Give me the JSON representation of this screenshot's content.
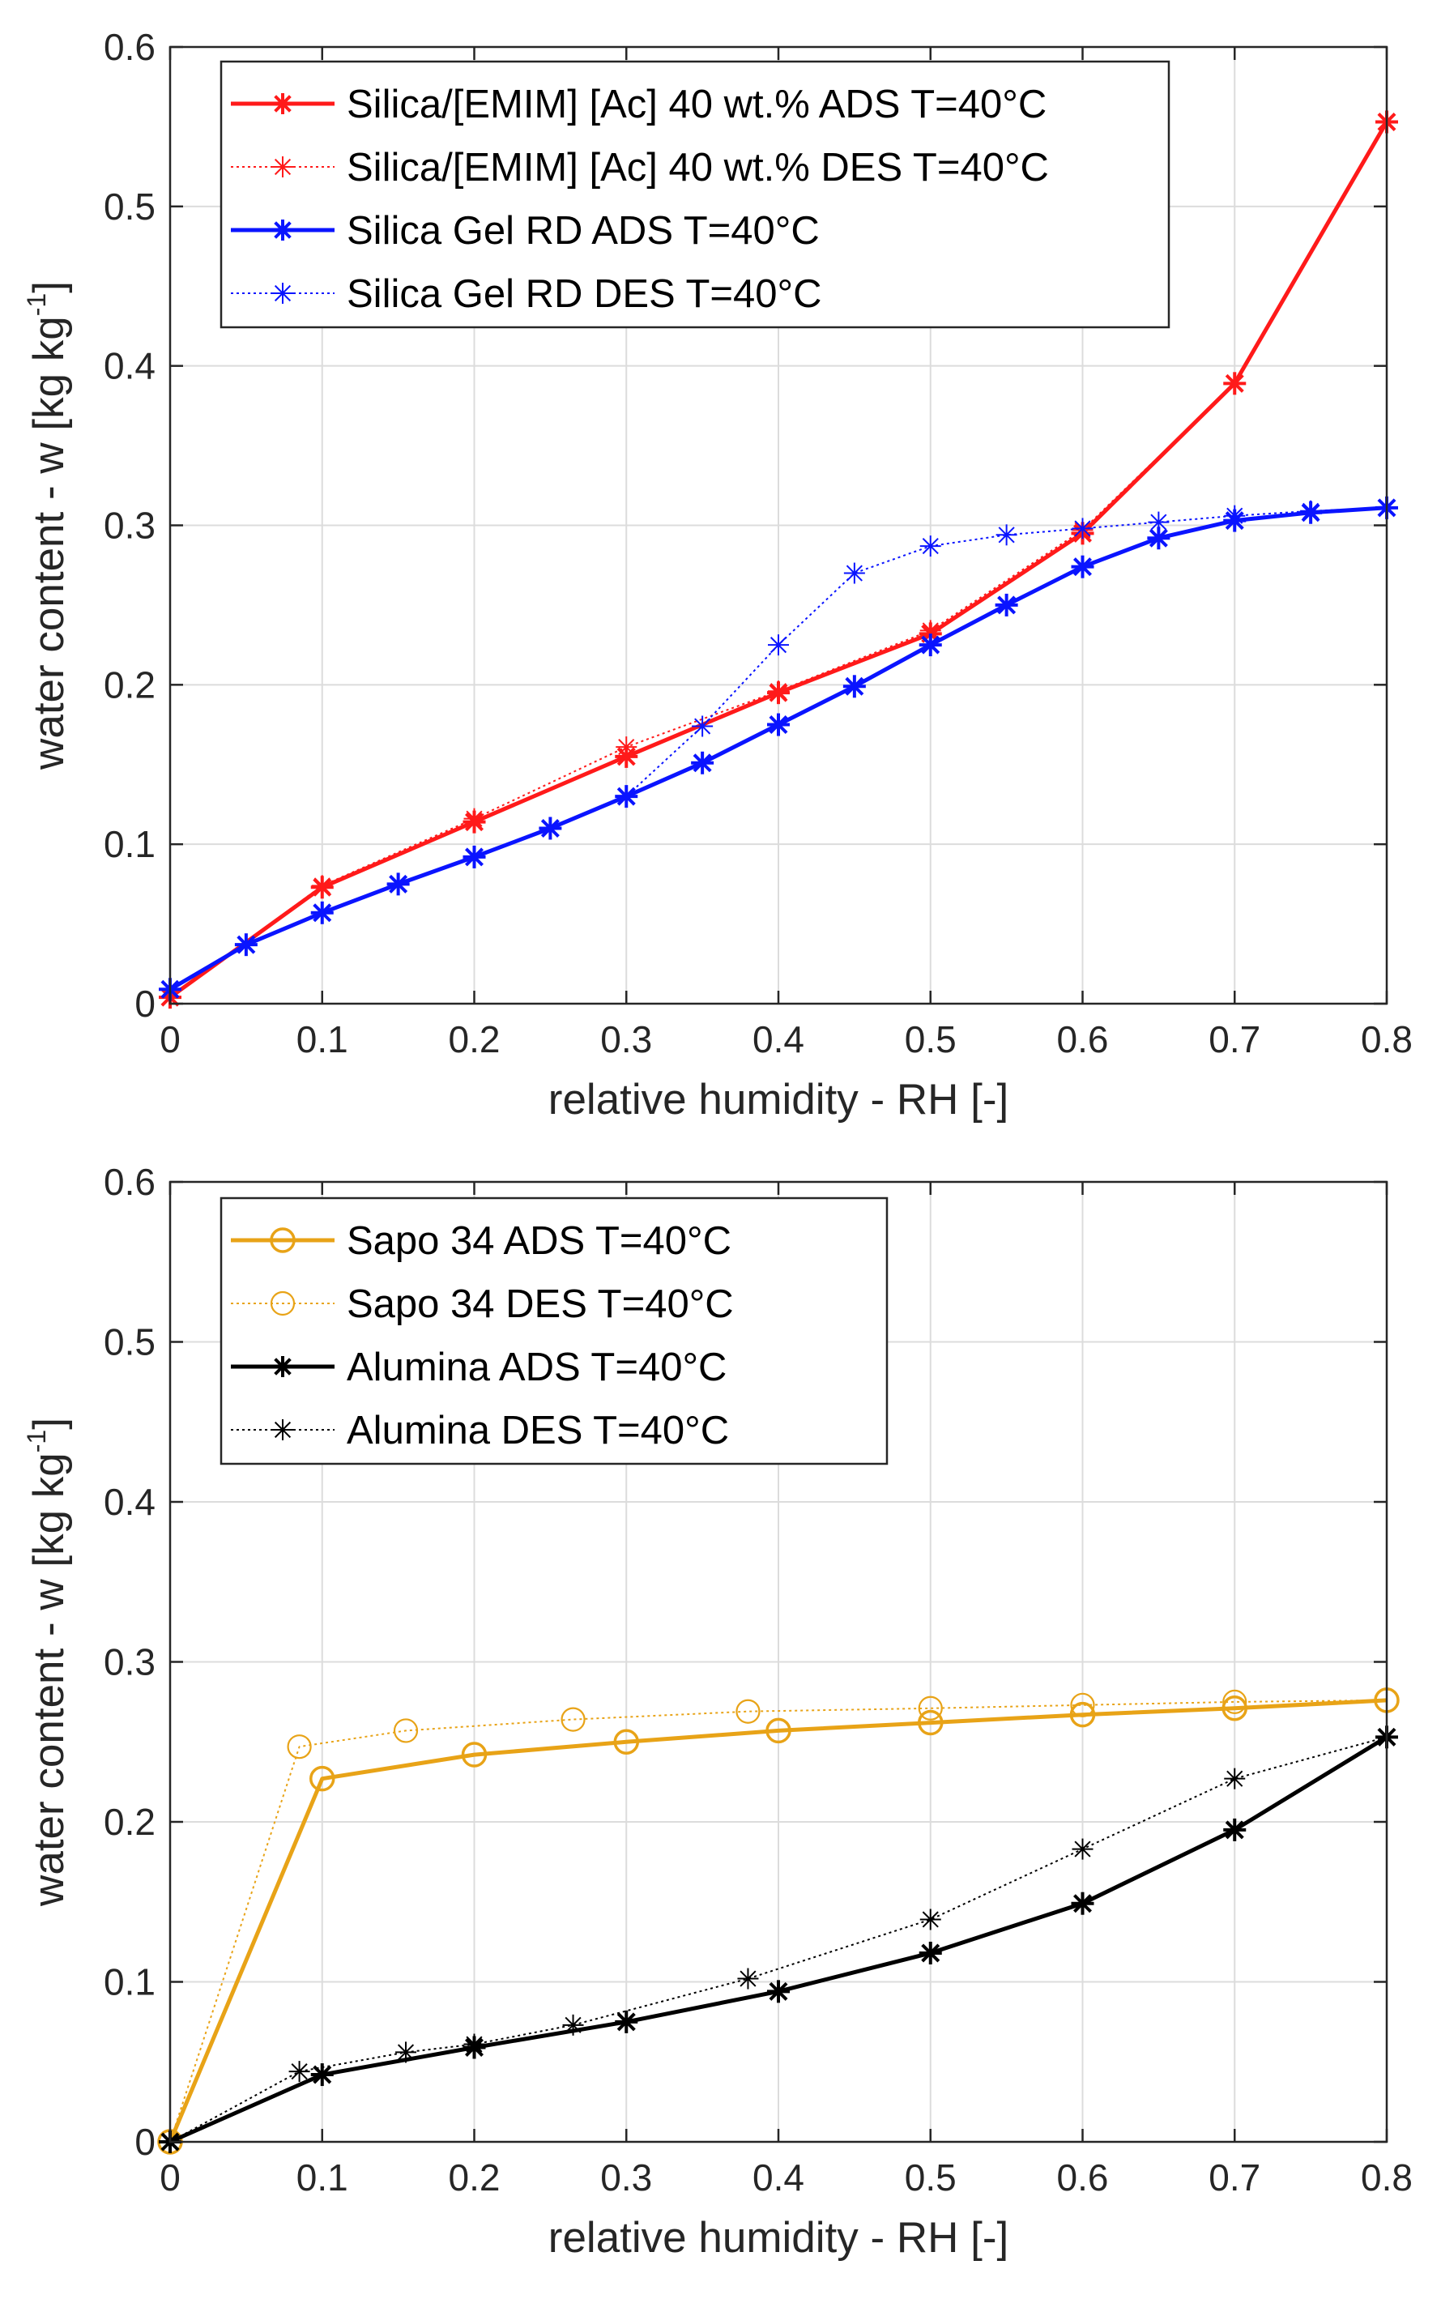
{
  "chart_data": [
    {
      "type": "line",
      "xlabel": "relative humidity - RH [-]",
      "ylabel": "water content - w [kg kg",
      "ylabel_sup": "-1",
      "ylabel_close": "]",
      "xlim": [
        0,
        0.8
      ],
      "ylim": [
        0,
        0.6
      ],
      "xticks": [
        0,
        0.1,
        0.2,
        0.3,
        0.4,
        0.5,
        0.6,
        0.7,
        0.8
      ],
      "xtick_labels": [
        "0",
        "0.1",
        "0.2",
        "0.3",
        "0.4",
        "0.5",
        "0.6",
        "0.7",
        "0.8"
      ],
      "yticks": [
        0,
        0.1,
        0.2,
        0.3,
        0.4,
        0.5,
        0.6
      ],
      "ytick_labels": [
        "0",
        "0.1",
        "0.2",
        "0.3",
        "0.4",
        "0.5",
        "0.6"
      ],
      "grid": true,
      "legend_position": "top-left",
      "series": [
        {
          "name": "Silica/[EMIM] [Ac] 40 wt.%  ADS T=40°C",
          "color": "#ff1a1a",
          "style": "solid",
          "marker": "asterisk",
          "points": [
            [
              0.0,
              0.004
            ],
            [
              0.1,
              0.073
            ],
            [
              0.2,
              0.114
            ],
            [
              0.3,
              0.155
            ],
            [
              0.4,
              0.195
            ],
            [
              0.5,
              0.232
            ],
            [
              0.6,
              0.295
            ],
            [
              0.7,
              0.389
            ],
            [
              0.8,
              0.553
            ]
          ]
        },
        {
          "name": "Silica/[EMIM] [Ac] 40 wt.%  DES T=40°C",
          "color": "#ff1a1a",
          "style": "dotted",
          "marker": "asterisk",
          "points": [
            [
              0.0,
              0.004
            ],
            [
              0.1,
              0.074
            ],
            [
              0.2,
              0.116
            ],
            [
              0.3,
              0.161
            ],
            [
              0.4,
              0.196
            ],
            [
              0.5,
              0.234
            ],
            [
              0.6,
              0.297
            ],
            [
              0.7,
              0.389
            ],
            [
              0.8,
              0.553
            ]
          ]
        },
        {
          "name": "Silica Gel RD ADS T=40°C",
          "color": "#0a14ff",
          "style": "solid",
          "marker": "asterisk",
          "points": [
            [
              0.0,
              0.009
            ],
            [
              0.05,
              0.037
            ],
            [
              0.1,
              0.057
            ],
            [
              0.15,
              0.075
            ],
            [
              0.2,
              0.092
            ],
            [
              0.25,
              0.11
            ],
            [
              0.3,
              0.13
            ],
            [
              0.35,
              0.151
            ],
            [
              0.4,
              0.175
            ],
            [
              0.45,
              0.199
            ],
            [
              0.5,
              0.225
            ],
            [
              0.55,
              0.25
            ],
            [
              0.6,
              0.274
            ],
            [
              0.65,
              0.292
            ],
            [
              0.7,
              0.303
            ],
            [
              0.75,
              0.308
            ],
            [
              0.8,
              0.311
            ]
          ]
        },
        {
          "name": "Silica Gel RD DES T=40°C",
          "color": "#0a14ff",
          "style": "dotted",
          "marker": "asterisk",
          "points": [
            [
              0.0,
              0.009
            ],
            [
              0.05,
              0.037
            ],
            [
              0.1,
              0.057
            ],
            [
              0.15,
              0.075
            ],
            [
              0.2,
              0.092
            ],
            [
              0.25,
              0.11
            ],
            [
              0.3,
              0.13
            ],
            [
              0.35,
              0.174
            ],
            [
              0.4,
              0.225
            ],
            [
              0.45,
              0.27
            ],
            [
              0.5,
              0.287
            ],
            [
              0.55,
              0.294
            ],
            [
              0.6,
              0.298
            ],
            [
              0.65,
              0.302
            ],
            [
              0.7,
              0.306
            ],
            [
              0.75,
              0.309
            ],
            [
              0.8,
              0.311
            ]
          ]
        }
      ]
    },
    {
      "type": "line",
      "xlabel": "relative humidity - RH [-]",
      "ylabel": "water content - w [kg kg",
      "ylabel_sup": "-1",
      "ylabel_close": "]",
      "xlim": [
        0,
        0.8
      ],
      "ylim": [
        0,
        0.6
      ],
      "xticks": [
        0,
        0.1,
        0.2,
        0.3,
        0.4,
        0.5,
        0.6,
        0.7,
        0.8
      ],
      "xtick_labels": [
        "0",
        "0.1",
        "0.2",
        "0.3",
        "0.4",
        "0.5",
        "0.6",
        "0.7",
        "0.8"
      ],
      "yticks": [
        0,
        0.1,
        0.2,
        0.3,
        0.4,
        0.5,
        0.6
      ],
      "ytick_labels": [
        "0",
        "0.1",
        "0.2",
        "0.3",
        "0.4",
        "0.5",
        "0.6"
      ],
      "grid": true,
      "legend_position": "top-left",
      "series": [
        {
          "name": "Sapo 34  ADS T=40°C",
          "color": "#e8a317",
          "style": "solid",
          "marker": "circle",
          "points": [
            [
              0.0,
              0.0
            ],
            [
              0.1,
              0.227
            ],
            [
              0.2,
              0.242
            ],
            [
              0.3,
              0.25
            ],
            [
              0.4,
              0.257
            ],
            [
              0.5,
              0.262
            ],
            [
              0.6,
              0.267
            ],
            [
              0.7,
              0.271
            ],
            [
              0.8,
              0.276
            ]
          ]
        },
        {
          "name": "Sapo 34  DES T=40°C",
          "color": "#e8a317",
          "style": "dotted",
          "marker": "circle",
          "points": [
            [
              0.0,
              0.0
            ],
            [
              0.085,
              0.247
            ],
            [
              0.155,
              0.257
            ],
            [
              0.265,
              0.264
            ],
            [
              0.38,
              0.269
            ],
            [
              0.5,
              0.271
            ],
            [
              0.6,
              0.273
            ],
            [
              0.7,
              0.275
            ],
            [
              0.8,
              0.276
            ]
          ]
        },
        {
          "name": "Alumina ADS T=40°C",
          "color": "#000000",
          "style": "solid",
          "marker": "asterisk",
          "points": [
            [
              0.0,
              0.0
            ],
            [
              0.1,
              0.042
            ],
            [
              0.2,
              0.059
            ],
            [
              0.3,
              0.075
            ],
            [
              0.4,
              0.094
            ],
            [
              0.5,
              0.118
            ],
            [
              0.6,
              0.149
            ],
            [
              0.7,
              0.195
            ],
            [
              0.8,
              0.253
            ]
          ]
        },
        {
          "name": "Alumina DES T=40°C",
          "color": "#000000",
          "style": "dotted",
          "marker": "asterisk",
          "points": [
            [
              0.0,
              0.0
            ],
            [
              0.085,
              0.044
            ],
            [
              0.155,
              0.056
            ],
            [
              0.2,
              0.061
            ],
            [
              0.265,
              0.073
            ],
            [
              0.38,
              0.102
            ],
            [
              0.5,
              0.139
            ],
            [
              0.6,
              0.183
            ],
            [
              0.7,
              0.227
            ],
            [
              0.8,
              0.253
            ]
          ]
        }
      ]
    }
  ]
}
